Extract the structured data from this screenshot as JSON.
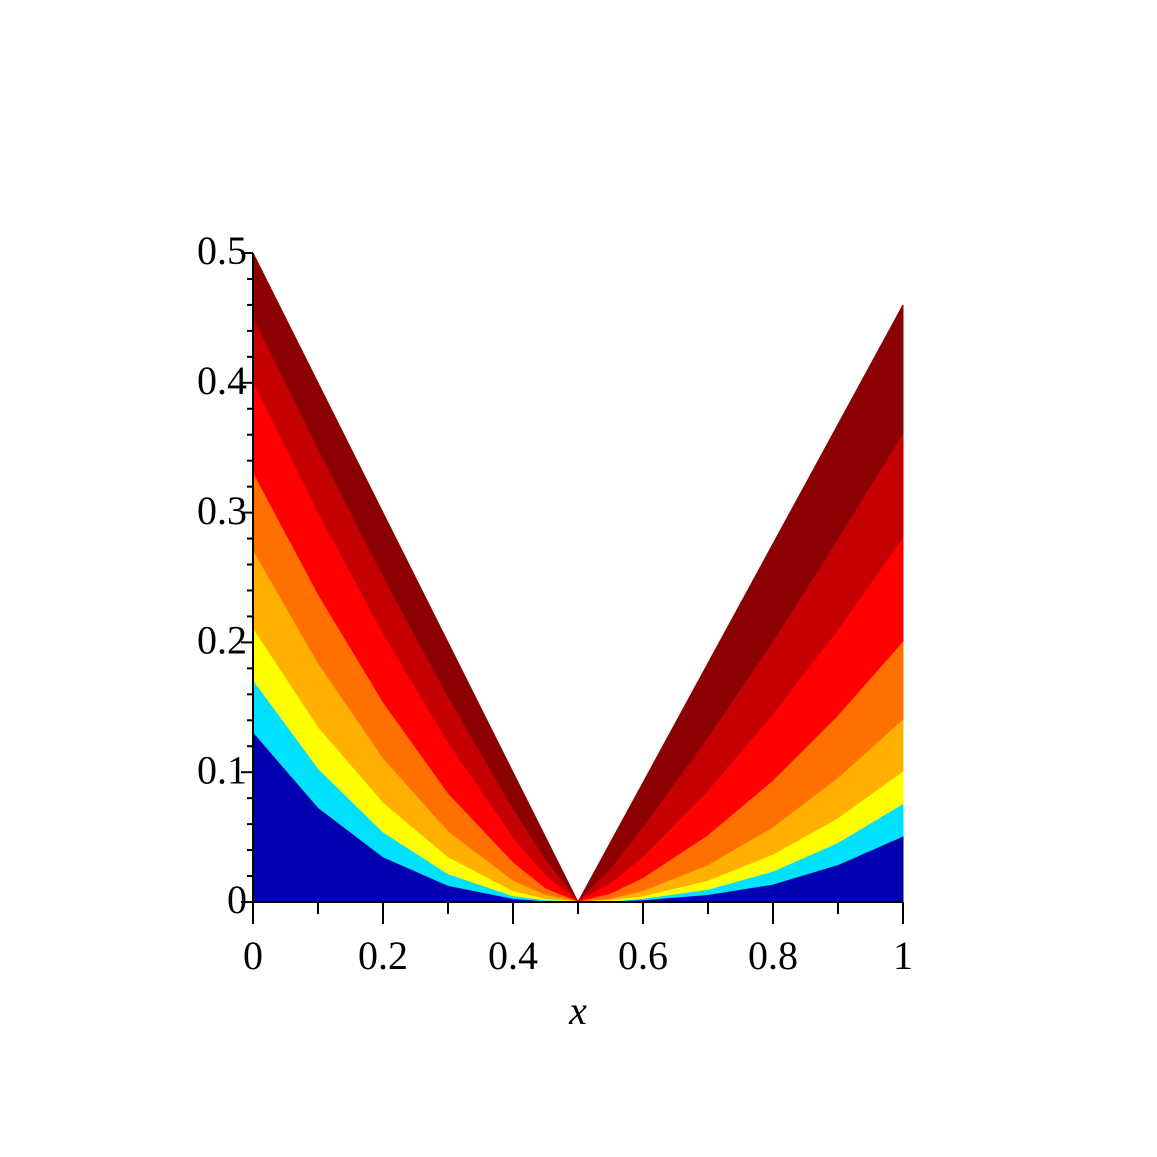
{
  "chart_data": {
    "type": "area",
    "x_label": "x",
    "x": [
      0,
      0.1,
      0.2,
      0.3,
      0.4,
      0.45,
      0.5,
      0.55,
      0.6,
      0.7,
      0.8,
      0.9,
      1
    ],
    "series": [
      {
        "color": "#8b0000",
        "values": [
          0.5,
          0.4,
          0.3,
          0.2,
          0.1,
          0.05,
          0,
          0.046,
          0.092,
          0.184,
          0.276,
          0.368,
          0.46
        ]
      },
      {
        "color": "#c40000",
        "values": [
          0.45,
          0.348,
          0.25,
          0.157,
          0.071,
          0.032,
          0,
          0.025,
          0.057,
          0.126,
          0.2,
          0.279,
          0.36
        ]
      },
      {
        "color": "#ff0000",
        "values": [
          0.4,
          0.299,
          0.206,
          0.122,
          0.049,
          0.02,
          0,
          0.014,
          0.034,
          0.085,
          0.144,
          0.209,
          0.28
        ]
      },
      {
        "color": "#ff7000",
        "values": [
          0.33,
          0.236,
          0.153,
          0.083,
          0.03,
          0.01,
          0,
          0.006,
          0.018,
          0.051,
          0.093,
          0.143,
          0.2
        ]
      },
      {
        "color": "#ffb000",
        "values": [
          0.27,
          0.183,
          0.11,
          0.054,
          0.016,
          0.005,
          0,
          0.002,
          0.008,
          0.028,
          0.057,
          0.095,
          0.14
        ]
      },
      {
        "color": "#ffff00",
        "values": [
          0.21,
          0.134,
          0.076,
          0.034,
          0.008,
          0.002,
          0,
          0.001,
          0.004,
          0.016,
          0.036,
          0.064,
          0.1
        ]
      },
      {
        "color": "#00e0ff",
        "values": [
          0.17,
          0.102,
          0.053,
          0.021,
          0.004,
          0.001,
          0,
          0,
          0.002,
          0.009,
          0.023,
          0.045,
          0.075
        ]
      },
      {
        "color": "#0000b0",
        "values": [
          0.13,
          0.072,
          0.034,
          0.012,
          0.002,
          0,
          0,
          0,
          0.001,
          0.005,
          0.013,
          0.028,
          0.05
        ]
      }
    ],
    "xlim": [
      0,
      1
    ],
    "ylim": [
      0,
      0.5
    ],
    "xticks": [
      0,
      0.2,
      0.4,
      0.6,
      0.8,
      1
    ],
    "yticks": [
      0,
      0.1,
      0.2,
      0.3,
      0.4,
      0.5
    ]
  }
}
